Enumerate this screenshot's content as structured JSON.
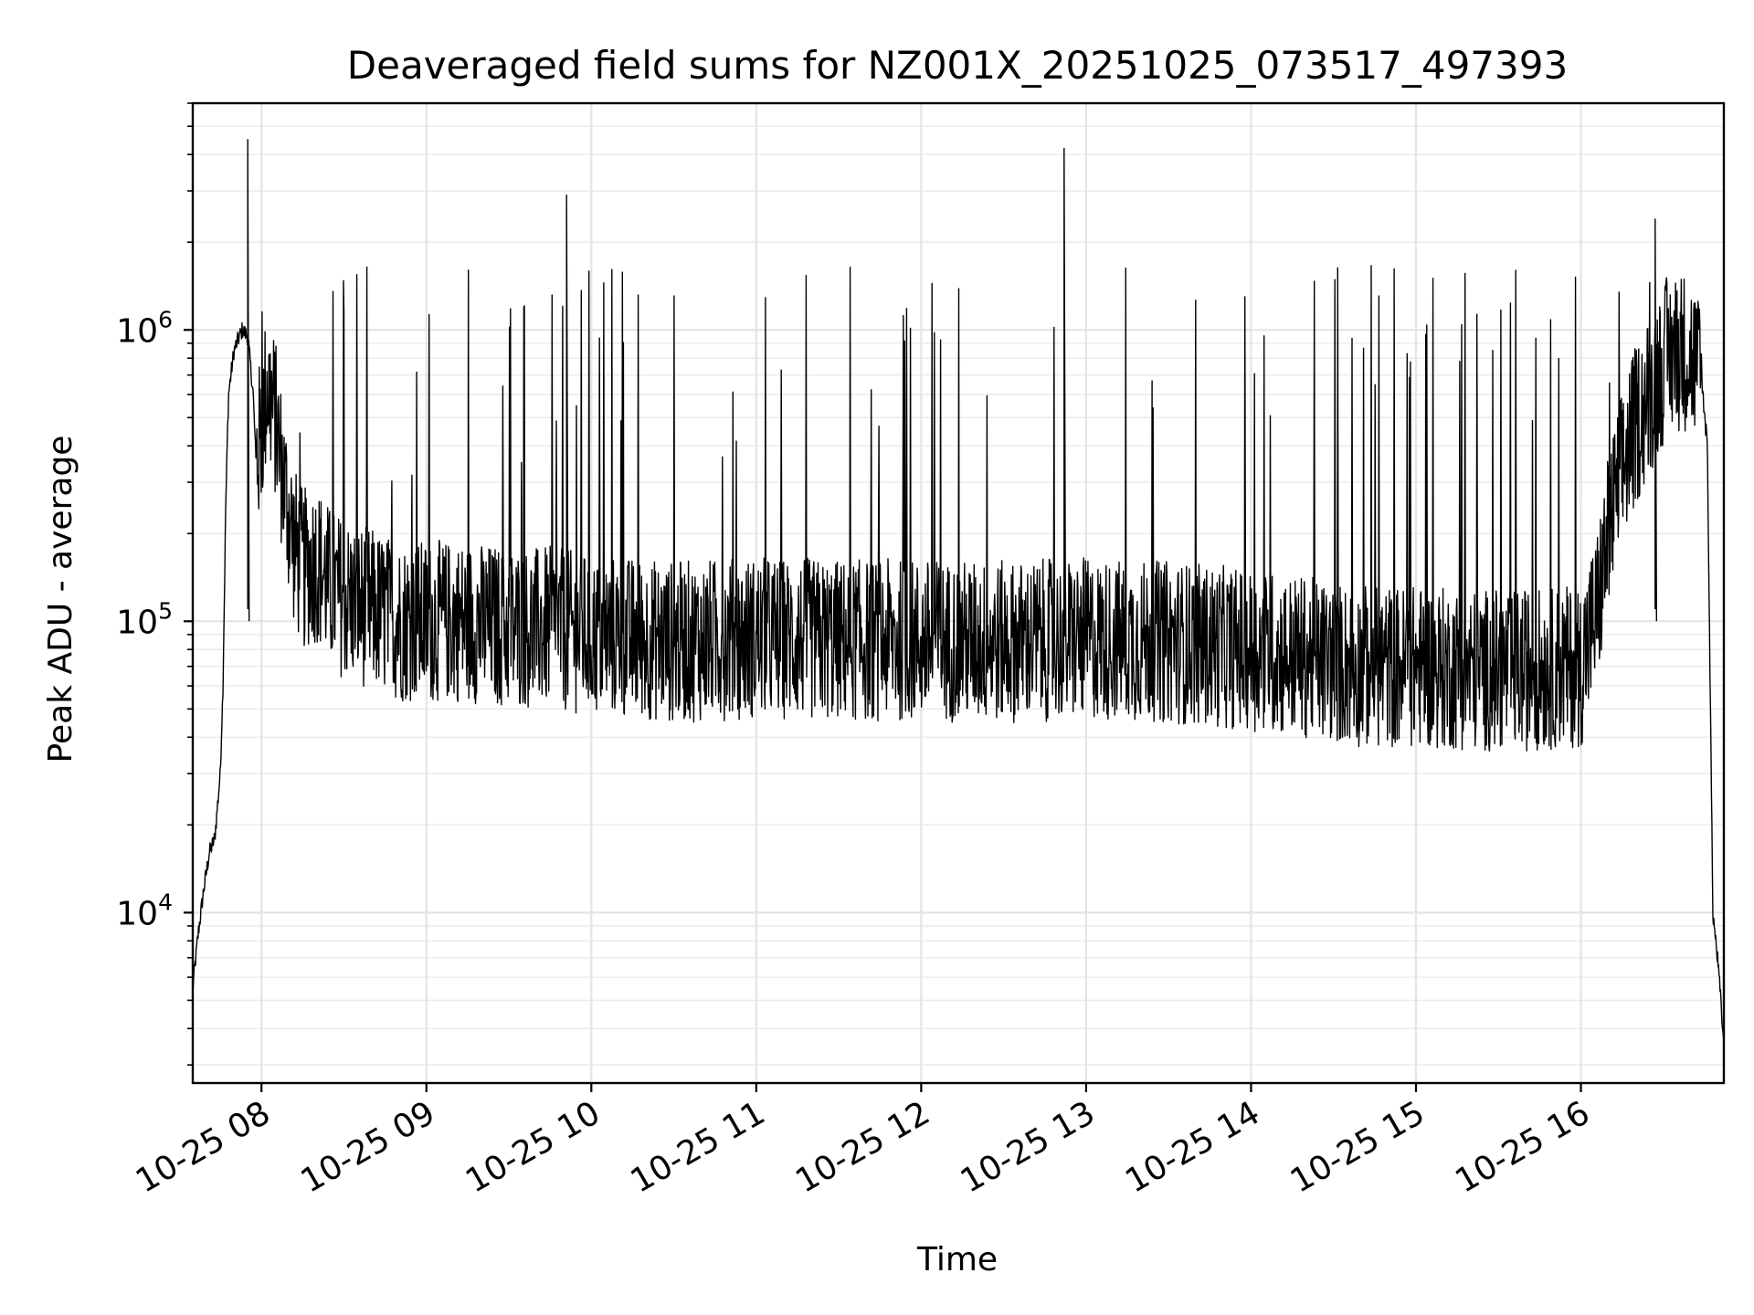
{
  "chart_data": {
    "type": "line",
    "title": "Deaveraged field sums for NZ001X_20251025_073517_497393",
    "xlabel": "Time",
    "ylabel": "Peak ADU - average",
    "yscale": "log",
    "grid": true,
    "grid_minor": true,
    "line_color": "#000000",
    "xlim": [
      "2025-10-25 07:35",
      "2025-10-25 16:52"
    ],
    "ylim": [
      2600,
      6000000
    ],
    "x_ticks": [
      {
        "value": "2025-10-25 08:00",
        "label": "10-25 08"
      },
      {
        "value": "2025-10-25 09:00",
        "label": "10-25 09"
      },
      {
        "value": "2025-10-25 10:00",
        "label": "10-25 10"
      },
      {
        "value": "2025-10-25 11:00",
        "label": "10-25 11"
      },
      {
        "value": "2025-10-25 12:00",
        "label": "10-25 12"
      },
      {
        "value": "2025-10-25 13:00",
        "label": "10-25 13"
      },
      {
        "value": "2025-10-25 14:00",
        "label": "10-25 14"
      },
      {
        "value": "2025-10-25 15:00",
        "label": "10-25 15"
      },
      {
        "value": "2025-10-25 16:00",
        "label": "10-25 16"
      }
    ],
    "y_ticks": [
      {
        "value": 10000,
        "base": "10",
        "exp": "4"
      },
      {
        "value": 100000,
        "base": "10",
        "exp": "5"
      },
      {
        "value": 1000000,
        "base": "10",
        "exp": "6"
      }
    ],
    "series": [
      {
        "x": [
          "2025-10-25 07:35",
          "2025-10-25 07:37",
          "2025-10-25 07:39",
          "2025-10-25 07:41",
          "2025-10-25 07:43",
          "2025-10-25 07:45",
          "2025-10-25 07:46",
          "2025-10-25 07:47",
          "2025-10-25 07:48",
          "2025-10-25 07:50",
          "2025-10-25 07:52",
          "2025-10-25 07:53",
          "2025-10-25 07:55",
          "2025-10-25 07:57",
          "2025-10-25 07:58",
          "2025-10-25 08:00",
          "2025-10-25 08:02",
          "2025-10-25 08:05",
          "2025-10-25 08:08",
          "2025-10-25 08:12",
          "2025-10-25 08:15",
          "2025-10-25 08:20",
          "2025-10-25 08:25",
          "2025-10-25 08:30",
          "2025-10-25 08:40",
          "2025-10-25 08:50",
          "2025-10-25 09:00",
          "2025-10-25 09:15",
          "2025-10-25 09:30",
          "2025-10-25 09:45",
          "2025-10-25 10:00",
          "2025-10-25 10:30",
          "2025-10-25 11:00",
          "2025-10-25 11:30",
          "2025-10-25 12:00",
          "2025-10-25 12:30",
          "2025-10-25 13:00",
          "2025-10-25 13:30",
          "2025-10-25 14:00",
          "2025-10-25 14:20",
          "2025-10-25 14:40",
          "2025-10-25 15:00",
          "2025-10-25 15:20",
          "2025-10-25 15:40",
          "2025-10-25 16:00",
          "2025-10-25 16:06",
          "2025-10-25 16:10",
          "2025-10-25 16:14",
          "2025-10-25 16:18",
          "2025-10-25 16:22",
          "2025-10-25 16:25",
          "2025-10-25 16:28",
          "2025-10-25 16:31",
          "2025-10-25 16:34",
          "2025-10-25 16:37",
          "2025-10-25 16:40",
          "2025-10-25 16:42",
          "2025-10-25 16:44",
          "2025-10-25 16:46",
          "2025-10-25 16:48",
          "2025-10-25 16:50",
          "2025-10-25 16:52"
        ],
        "y": [
          5500,
          8500,
          12000,
          16000,
          18000,
          30000,
          60000,
          250000,
          600000,
          850000,
          950000,
          1000000,
          950000,
          600000,
          350000,
          450000,
          650000,
          500000,
          300000,
          180000,
          150000,
          160000,
          130000,
          120000,
          110000,
          100000,
          100000,
          100000,
          95000,
          95000,
          90000,
          85000,
          88000,
          86000,
          86000,
          85000,
          87000,
          85000,
          80000,
          75000,
          70000,
          70000,
          68000,
          68000,
          70000,
          110000,
          200000,
          300000,
          420000,
          520000,
          600000,
          700000,
          800000,
          850000,
          850000,
          820000,
          750000,
          650000,
          400000,
          10000,
          6500,
          3500
        ]
      }
    ]
  }
}
